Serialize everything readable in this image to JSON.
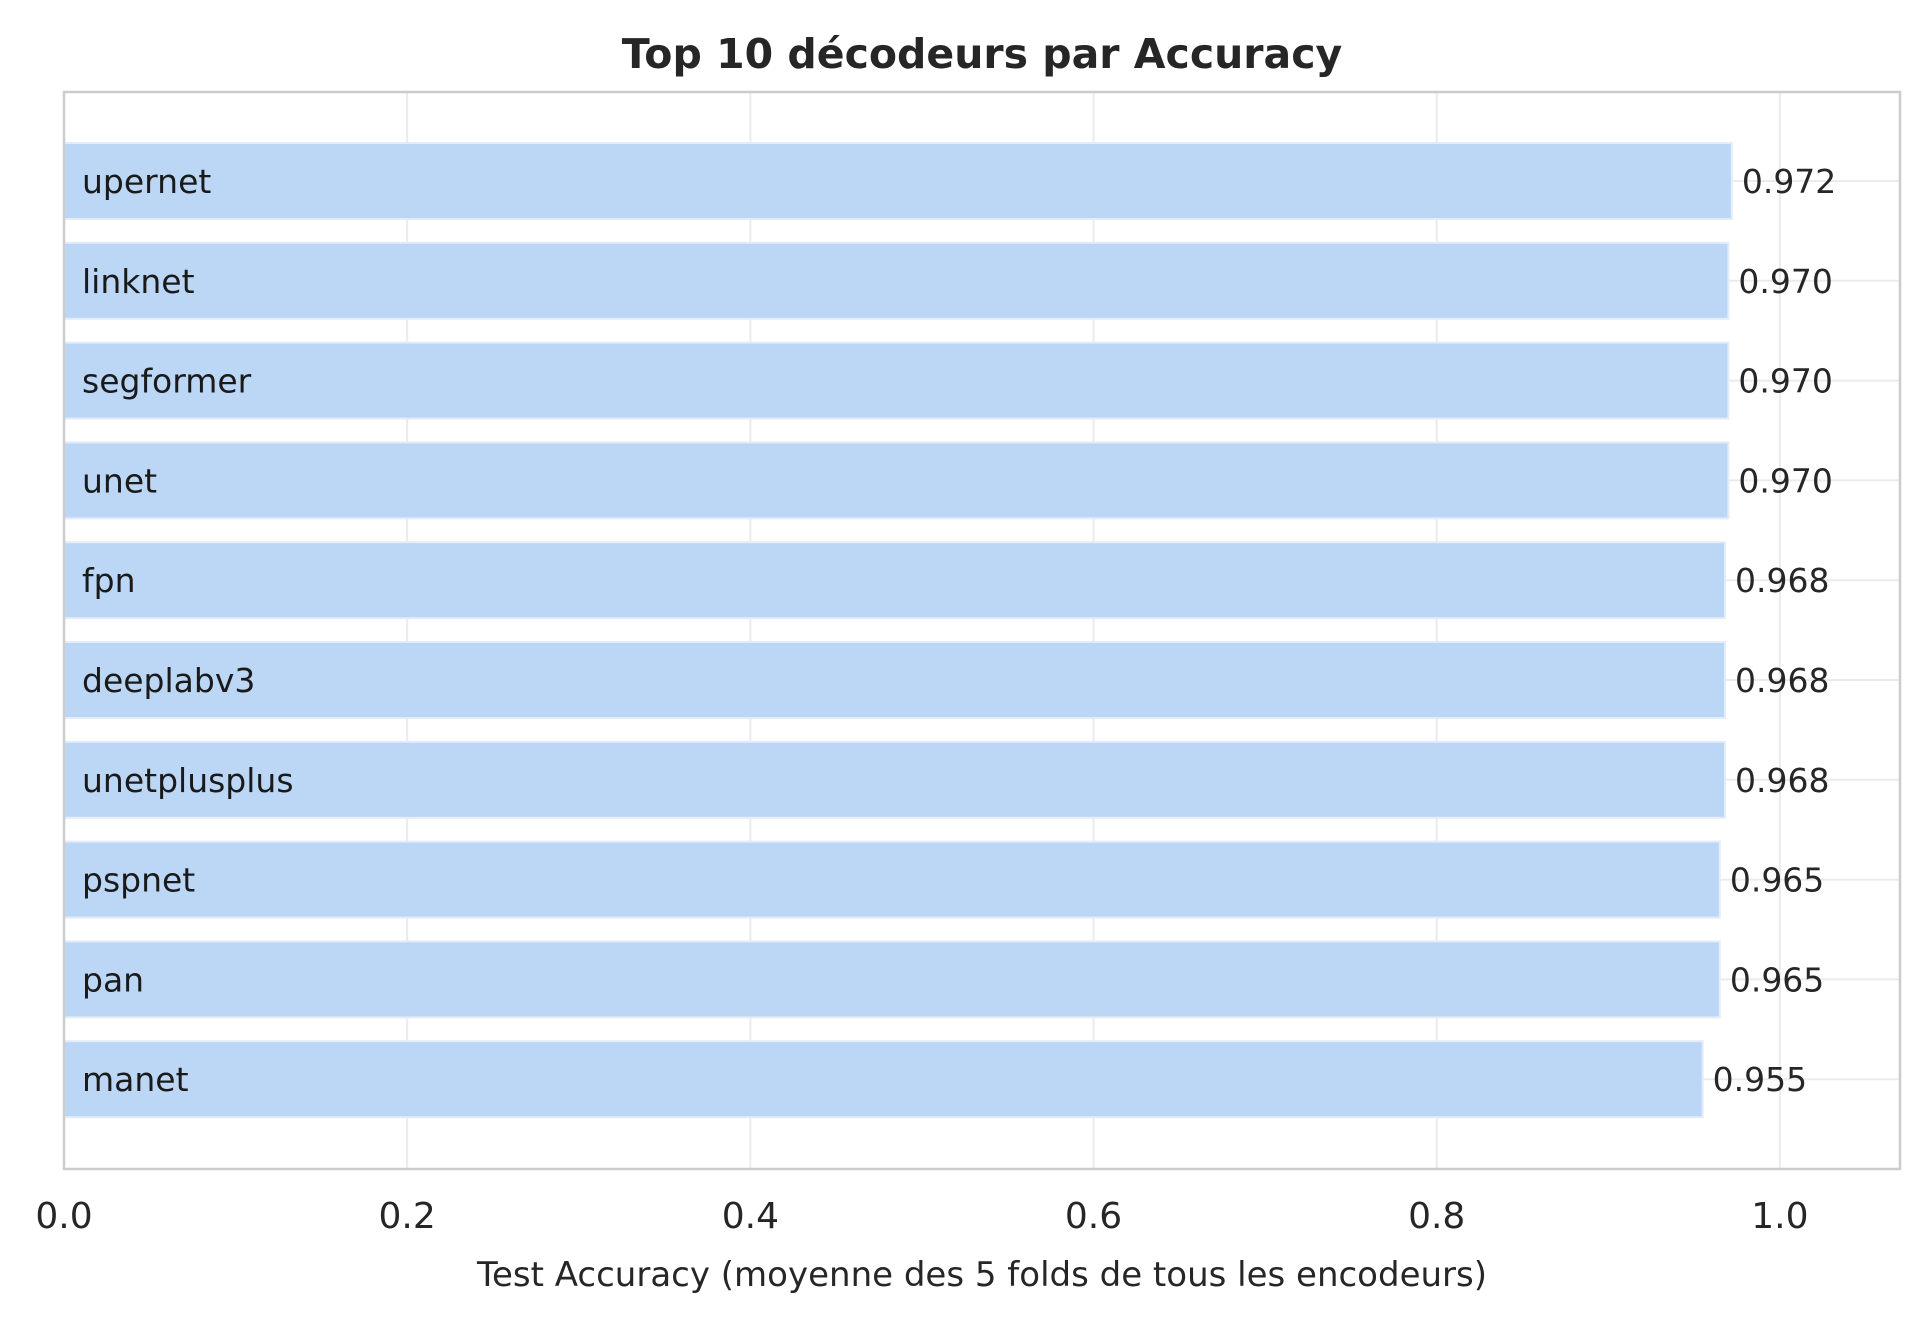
{
  "chart_data": {
    "type": "bar",
    "orientation": "horizontal",
    "title": "Top 10 décodeurs par Accuracy",
    "xlabel": "Test Accuracy (moyenne des 5 folds de tous les encodeurs)",
    "ylabel": "",
    "xlim": [
      0.0,
      1.07
    ],
    "xticks": [
      "0.0",
      "0.2",
      "0.4",
      "0.6",
      "0.8",
      "1.0"
    ],
    "grid": true,
    "categories": [
      "upernet",
      "linknet",
      "segformer",
      "unet",
      "fpn",
      "deeplabv3",
      "unetplusplus",
      "pspnet",
      "pan",
      "manet"
    ],
    "values": [
      0.972,
      0.97,
      0.97,
      0.97,
      0.968,
      0.968,
      0.968,
      0.965,
      0.965,
      0.955
    ],
    "value_labels": [
      "0.972",
      "0.970",
      "0.970",
      "0.970",
      "0.968",
      "0.968",
      "0.968",
      "0.965",
      "0.965",
      "0.955"
    ],
    "bar_color": "#bcd6f5",
    "bar_edge_color": "#e3edf9"
  }
}
